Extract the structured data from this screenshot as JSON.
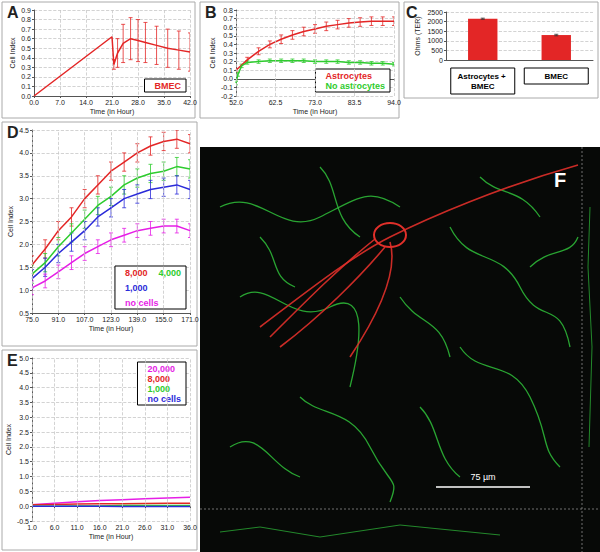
{
  "chart_data": [
    {
      "panel": "A",
      "type": "line",
      "x_label": "Time (in Hour)",
      "y_label": "Cell Index",
      "xlim": [
        0,
        42
      ],
      "xticks": [
        {
          "value": 0,
          "label": "0.0"
        },
        {
          "value": 7,
          "label": "7.0"
        },
        {
          "value": 14,
          "label": "14.0"
        },
        {
          "value": 21,
          "label": "21.0"
        },
        {
          "value": 28,
          "label": "28.0"
        },
        {
          "value": 35,
          "label": "35.0"
        },
        {
          "value": 42,
          "label": "42.0"
        }
      ],
      "ylim": [
        0,
        0.9
      ],
      "yticks": [
        {
          "value": 0,
          "label": "0.0"
        },
        0.1,
        0.2,
        0.3,
        0.4,
        0.5,
        0.6,
        0.7,
        0.8,
        0.9
      ],
      "grid": true,
      "legend": "bottom right",
      "series": [
        {
          "name": "BMEC",
          "color": "#e32626",
          "x": [
            0,
            21,
            21.5,
            22.5,
            24,
            26,
            28,
            30,
            33,
            36,
            39,
            42
          ],
          "values": [
            0.0,
            0.62,
            0.33,
            0.45,
            0.55,
            0.6,
            0.58,
            0.56,
            0.53,
            0.5,
            0.48,
            0.46
          ],
          "errors": [
            0,
            0,
            0.05,
            0.15,
            0.2,
            0.22,
            0.22,
            0.21,
            0.2,
            0.2,
            0.2,
            0.2
          ]
        }
      ]
    },
    {
      "panel": "B",
      "type": "line",
      "x_label": "Time (in Hour)",
      "y_label": "Cell Index",
      "xlim": [
        52,
        94
      ],
      "xticks": [
        {
          "value": 52,
          "label": "52.0"
        },
        62.5,
        {
          "value": 73,
          "label": "73.0"
        },
        83.5,
        {
          "value": 94,
          "label": "94.0"
        }
      ],
      "ylim": [
        -0.2,
        0.8
      ],
      "yticks": [
        -0.2,
        -0.1,
        {
          "value": 0,
          "label": "0.0"
        },
        0.1,
        0.2,
        0.3,
        0.4,
        0.5,
        0.6,
        0.7,
        0.8
      ],
      "grid": true,
      "legend": "bottom right",
      "series": [
        {
          "name": "Astrocytes",
          "color": "#e32626",
          "x": [
            52,
            55,
            58,
            61,
            64,
            67,
            70,
            73,
            76,
            79,
            82,
            85,
            88,
            91,
            94
          ],
          "values": [
            0.1,
            0.22,
            0.32,
            0.4,
            0.46,
            0.51,
            0.55,
            0.58,
            0.61,
            0.63,
            0.65,
            0.66,
            0.67,
            0.67,
            0.67
          ],
          "errors": [
            0.02,
            0.03,
            0.04,
            0.04,
            0.05,
            0.05,
            0.05,
            0.05,
            0.05,
            0.05,
            0.05,
            0.05,
            0.05,
            0.05,
            0.05
          ]
        },
        {
          "name": "No astrocytes",
          "color": "#2ecc2e",
          "x": [
            52,
            52.5,
            53.5,
            55,
            58,
            61,
            64,
            67,
            70,
            73,
            76,
            79,
            82,
            85,
            88,
            91,
            94
          ],
          "values": [
            -0.05,
            0.05,
            0.15,
            0.19,
            0.2,
            0.21,
            0.21,
            0.21,
            0.21,
            0.2,
            0.2,
            0.2,
            0.19,
            0.19,
            0.18,
            0.18,
            0.17
          ],
          "errors": [
            0.02,
            0.02,
            0.02,
            0.02,
            0.02,
            0.02,
            0.02,
            0.02,
            0.02,
            0.02,
            0.02,
            0.02,
            0.02,
            0.02,
            0.02,
            0.02,
            0.02
          ]
        }
      ]
    },
    {
      "panel": "C",
      "type": "bar",
      "y_label": "Ohms (TER)",
      "categories": [
        "Astrocytes + BMEC",
        "BMEC"
      ],
      "values": [
        2150,
        1300
      ],
      "errors": [
        30,
        40
      ],
      "color": "#e32626",
      "ylim": [
        0,
        2500
      ],
      "yticks": [
        0,
        500,
        1000,
        1500,
        2000,
        2500
      ],
      "grid": true
    },
    {
      "panel": "D",
      "type": "line",
      "x_label": "Time (in Hour)",
      "y_label": "Cell Index",
      "xlim": [
        75,
        171
      ],
      "xticks": [
        {
          "value": 75,
          "label": "75.0"
        },
        {
          "value": 91,
          "label": "91.0"
        },
        {
          "value": 107,
          "label": "107.0"
        },
        {
          "value": 123,
          "label": "123.0"
        },
        {
          "value": 139,
          "label": "139.0"
        },
        {
          "value": 155,
          "label": "155.0"
        },
        {
          "value": 171,
          "label": "171.0"
        }
      ],
      "ylim": [
        0.5,
        4.5
      ],
      "yticks": [
        0.5,
        {
          "value": 1,
          "label": "1.0"
        },
        1.5,
        {
          "value": 2,
          "label": "2.0"
        },
        2.5,
        {
          "value": 3,
          "label": "3.0"
        },
        3.5,
        {
          "value": 4,
          "label": "4.0"
        },
        4.5
      ],
      "grid": true,
      "legend": "bottom right",
      "series": [
        {
          "name": "8,000",
          "color": "#e32626",
          "x": [
            75,
            83,
            91,
            99,
            107,
            115,
            123,
            131,
            139,
            147,
            155,
            163,
            171
          ],
          "values": [
            1.55,
            1.9,
            2.3,
            2.6,
            3.0,
            3.3,
            3.6,
            3.8,
            4.0,
            4.15,
            4.25,
            4.3,
            4.2
          ],
          "errors": [
            0.2,
            0.2,
            0.2,
            0.2,
            0.2,
            0.2,
            0.2,
            0.2,
            0.2,
            0.2,
            0.2,
            0.2,
            0.2
          ]
        },
        {
          "name": "4,000",
          "color": "#2ecc2e",
          "x": [
            75,
            83,
            91,
            99,
            107,
            115,
            123,
            131,
            139,
            147,
            155,
            163,
            171
          ],
          "values": [
            1.35,
            1.6,
            1.95,
            2.25,
            2.55,
            2.85,
            3.05,
            3.3,
            3.45,
            3.55,
            3.6,
            3.7,
            3.65
          ],
          "errors": [
            0.2,
            0.2,
            0.2,
            0.2,
            0.2,
            0.2,
            0.2,
            0.2,
            0.2,
            0.2,
            0.2,
            0.2,
            0.2
          ]
        },
        {
          "name": "1,000",
          "color": "#2b2bd9",
          "x": [
            75,
            83,
            91,
            99,
            107,
            115,
            123,
            131,
            139,
            147,
            155,
            163,
            171
          ],
          "values": [
            1.25,
            1.5,
            1.8,
            2.05,
            2.3,
            2.6,
            2.8,
            3.0,
            3.1,
            3.2,
            3.25,
            3.3,
            3.2
          ],
          "errors": [
            0.2,
            0.2,
            0.2,
            0.2,
            0.2,
            0.2,
            0.2,
            0.2,
            0.2,
            0.2,
            0.2,
            0.2,
            0.2
          ]
        },
        {
          "name": "no cells",
          "color": "#e61ee6",
          "x": [
            75,
            83,
            91,
            99,
            107,
            115,
            123,
            131,
            139,
            147,
            155,
            163,
            171
          ],
          "values": [
            1.05,
            1.2,
            1.4,
            1.6,
            1.8,
            1.95,
            2.1,
            2.2,
            2.3,
            2.35,
            2.4,
            2.4,
            2.3
          ],
          "errors": [
            0.15,
            0.15,
            0.15,
            0.15,
            0.15,
            0.15,
            0.15,
            0.15,
            0.15,
            0.15,
            0.15,
            0.15,
            0.15
          ]
        }
      ]
    },
    {
      "panel": "E",
      "type": "line",
      "x_label": "Time (in Hour)",
      "y_label": "Cell Index",
      "xlim": [
        1,
        36
      ],
      "xticks": [
        {
          "value": 1,
          "label": "1.0"
        },
        {
          "value": 6,
          "label": "6.0"
        },
        {
          "value": 11,
          "label": "11.0"
        },
        {
          "value": 16,
          "label": "16.0"
        },
        {
          "value": 21,
          "label": "21.0"
        },
        {
          "value": 26,
          "label": "26.0"
        },
        {
          "value": 31,
          "label": "31.0"
        },
        {
          "value": 36,
          "label": "36.0"
        }
      ],
      "ylim": [
        -0.5,
        5.0
      ],
      "yticks": [
        -0.5,
        {
          "value": 0,
          "label": "0.0"
        },
        0.5,
        {
          "value": 1,
          "label": "1.0"
        },
        1.5,
        {
          "value": 2,
          "label": "2.0"
        },
        2.5,
        {
          "value": 3,
          "label": "3.0"
        },
        3.5,
        {
          "value": 4,
          "label": "4.0"
        },
        4.5,
        {
          "value": 5,
          "label": "5.0"
        }
      ],
      "grid": true,
      "legend": "top right",
      "series": [
        {
          "name": "20,000",
          "color": "#e61ee6",
          "x": [
            1,
            6,
            11,
            16,
            21,
            26,
            31,
            36
          ],
          "values": [
            0.05,
            0.1,
            0.15,
            0.19,
            0.22,
            0.25,
            0.28,
            0.3
          ]
        },
        {
          "name": "8,000",
          "color": "#e32626",
          "x": [
            1,
            6,
            11,
            16,
            21,
            26,
            31,
            36
          ],
          "values": [
            0.05,
            0.06,
            0.07,
            0.08,
            0.08,
            0.09,
            0.1,
            0.1
          ]
        },
        {
          "name": "1,000",
          "color": "#2ecc2e",
          "x": [
            1,
            6,
            11,
            16,
            21,
            26,
            31,
            36
          ],
          "values": [
            0.0,
            0.0,
            0.01,
            0.01,
            0.02,
            0.02,
            0.02,
            0.02
          ]
        },
        {
          "name": "no cells",
          "color": "#2b2bd9",
          "x": [
            1,
            6,
            11,
            16,
            21,
            26,
            31,
            36
          ],
          "values": [
            0.0,
            0.0,
            0.0,
            0.0,
            -0.01,
            -0.01,
            -0.01,
            -0.01
          ]
        }
      ]
    }
  ],
  "image_panel": {
    "panel": "F",
    "scale_bar": "75 µm"
  }
}
